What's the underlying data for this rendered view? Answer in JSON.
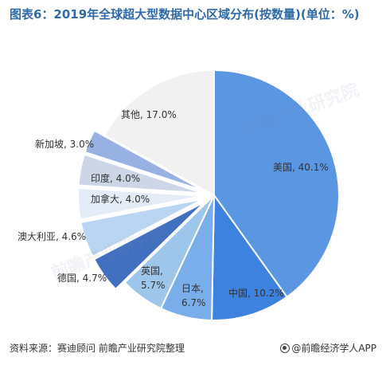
{
  "title": "图表6：2019年全球超大型数据中心区域分布(按数量)(单位：%)",
  "chart_data": {
    "type": "pie",
    "title": "图表6：2019年全球超大型数据中心区域分布(按数量)(单位：%)",
    "slices": [
      {
        "label": "美国",
        "value": 40.1,
        "display": "美国, 40.1%",
        "color": "#5b96e3"
      },
      {
        "label": "中国",
        "value": 10.2,
        "display": "中国, 10.2%",
        "color": "#3c82de"
      },
      {
        "label": "日本",
        "value": 6.7,
        "display": "日本,|6.7%",
        "color": "#7aaeea"
      },
      {
        "label": "英国",
        "value": 5.7,
        "display": "英国,|5.7%",
        "color": "#9ec5ea"
      },
      {
        "label": "德国",
        "value": 4.7,
        "display": "德国, 4.7%",
        "color": "#4270c0"
      },
      {
        "label": "澳大利亚",
        "value": 4.6,
        "display": "澳大利亚, 4.6%",
        "color": "#b9d5f1"
      },
      {
        "label": "加拿大",
        "value": 4.0,
        "display": "加拿大, 4.0%",
        "color": "#e3ecf7"
      },
      {
        "label": "印度",
        "value": 4.0,
        "display": "印度, 4.0%",
        "color": "#ccd6e6"
      },
      {
        "label": "新加坡",
        "value": 3.0,
        "display": "新加坡, 3.0%",
        "color": "#96b1e2"
      },
      {
        "label": "其他",
        "value": 17.0,
        "display": "其他, 17.0%",
        "color": "#f1f1f1"
      }
    ]
  },
  "footer": {
    "source": "资料来源：赛迪顾问 前瞻产业研究院整理",
    "brand": "@前瞻经济学人APP"
  },
  "watermark": "前瞻产业研究院"
}
